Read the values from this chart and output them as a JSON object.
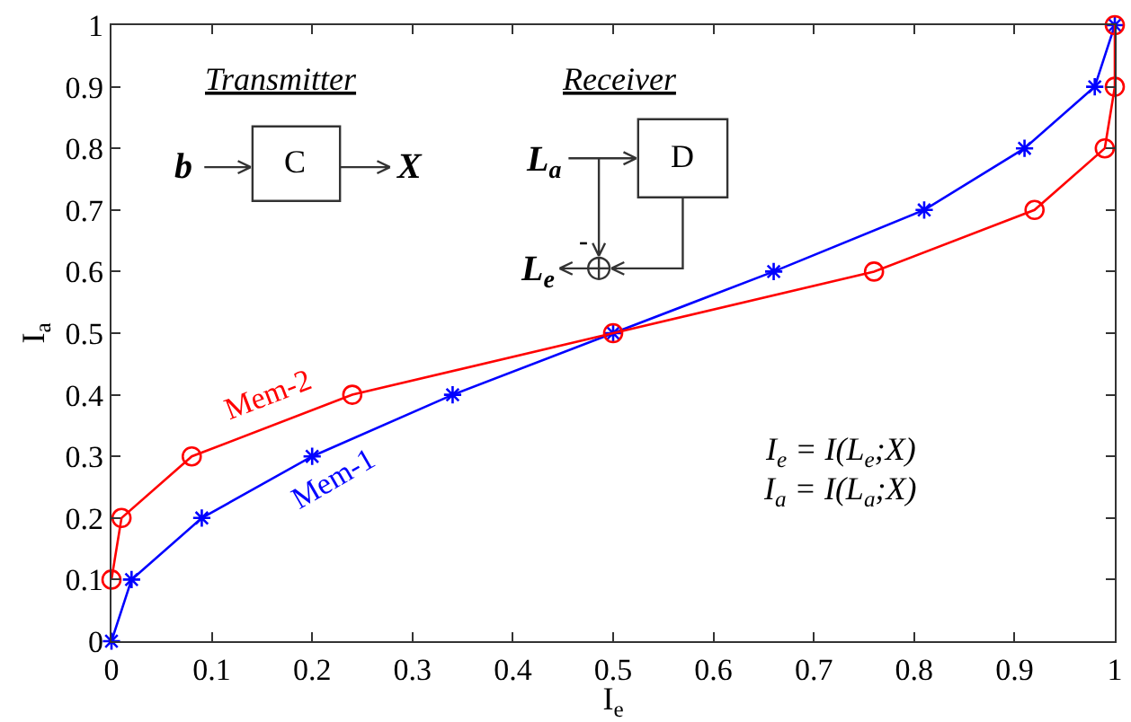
{
  "chart_data": {
    "type": "line",
    "xlabel": "I$_{e}$",
    "ylabel": "I$_{a}$",
    "xlim": [
      0,
      1
    ],
    "ylim": [
      0,
      1
    ],
    "xticks": [
      0,
      0.1,
      0.2,
      0.3,
      0.4,
      0.5,
      0.6,
      0.7,
      0.8,
      0.9,
      1
    ],
    "yticks": [
      0,
      0.1,
      0.2,
      0.3,
      0.4,
      0.5,
      0.6,
      0.7,
      0.8,
      0.9,
      1
    ],
    "series": [
      {
        "name": "Mem-1",
        "color": "#0000ff",
        "marker": "cross",
        "x": [
          0,
          0.02,
          0.09,
          0.2,
          0.34,
          0.5,
          0.66,
          0.81,
          0.91,
          0.98,
          1
        ],
        "values": [
          0,
          0.1,
          0.2,
          0.3,
          0.4,
          0.5,
          0.6,
          0.7,
          0.8,
          0.9,
          1
        ]
      },
      {
        "name": "Mem-2",
        "color": "#ff0000",
        "marker": "circle",
        "x": [
          0,
          0.01,
          0.08,
          0.24,
          0.5,
          0.76,
          0.92,
          0.99,
          1,
          1
        ],
        "values": [
          0.1,
          0.2,
          0.3,
          0.4,
          0.5,
          0.6,
          0.7,
          0.8,
          0.9,
          1
        ]
      }
    ],
    "annotations": [
      "Transmitter",
      "b",
      "C",
      "X",
      "Receiver",
      "L$_{a}$",
      "D",
      "-",
      "L$_{e}$",
      "I$_{e}$ = I(L$_{e}$;X)",
      "I$_{a}$ = I(L$_{a}$;X)"
    ]
  }
}
